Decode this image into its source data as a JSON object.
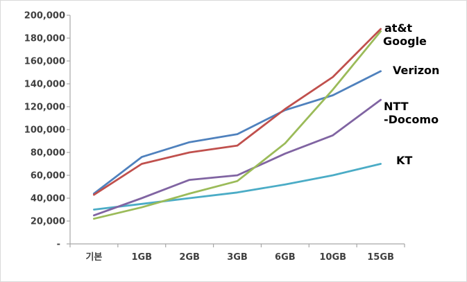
{
  "chart_data": {
    "type": "line",
    "title": "",
    "xlabel": "",
    "ylabel": "",
    "categories": [
      "기본",
      "1GB",
      "2GB",
      "3GB",
      "6GB",
      "10GB",
      "15GB"
    ],
    "y_axis": {
      "min": 0,
      "max": 200000,
      "step": 20000,
      "tick_labels": [
        "-",
        "20,000",
        "40,000",
        "60,000",
        "80,000",
        "100,000",
        "120,000",
        "140,000",
        "160,000",
        "180,000",
        "200,000"
      ]
    },
    "grid": false,
    "legend_position": "labels-at-line-ends",
    "series": [
      {
        "name": "Verizon",
        "color": "#4f81bd",
        "label_lines": [
          "Verizon"
        ],
        "values": [
          44000,
          76000,
          89000,
          96000,
          117000,
          130000,
          151000
        ]
      },
      {
        "name": "KT",
        "color": "#4bacc6",
        "label_lines": [
          "KT"
        ],
        "values": [
          30000,
          35000,
          40000,
          45000,
          52000,
          60000,
          70000
        ]
      },
      {
        "name": "NTT-Docomo",
        "color": "#8064a2",
        "label_lines": [
          "NTT",
          "-Docomo"
        ],
        "values": [
          25000,
          40000,
          56000,
          60000,
          79000,
          95000,
          126000
        ]
      },
      {
        "name": "Google",
        "color": "#9bbb59",
        "label_lines": [
          "Google"
        ],
        "values": [
          22000,
          32000,
          44000,
          55000,
          88000,
          135000,
          186000
        ]
      },
      {
        "name": "at&t",
        "color": "#c0504d",
        "label_lines": [
          "at&t"
        ],
        "values": [
          43000,
          70000,
          80000,
          86000,
          118000,
          146000,
          188000
        ]
      }
    ]
  }
}
